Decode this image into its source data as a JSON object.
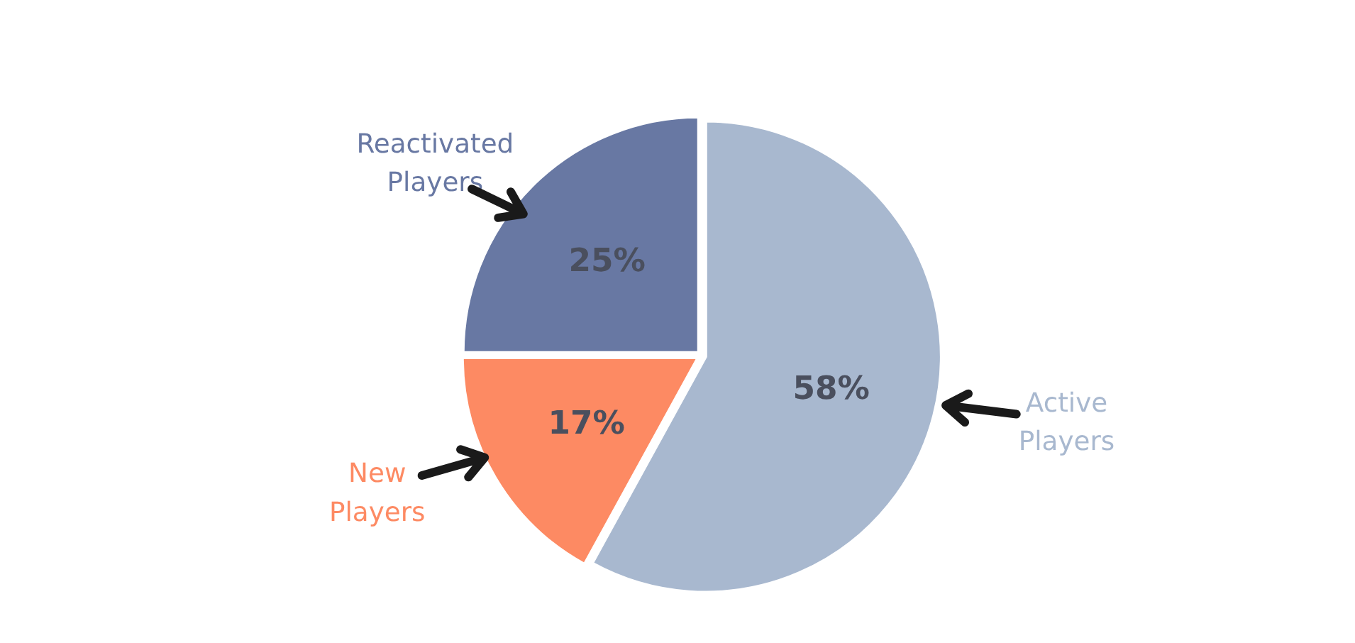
{
  "chart_data": {
    "type": "pie",
    "categories": [
      "Active Players",
      "New Players",
      "Reactivated Players"
    ],
    "values": [
      58,
      17,
      25
    ],
    "colors": [
      "#a8b8cf",
      "#fd8a63",
      "#6878a3"
    ],
    "value_labels": [
      "58%",
      "17%",
      "25%"
    ]
  }
}
